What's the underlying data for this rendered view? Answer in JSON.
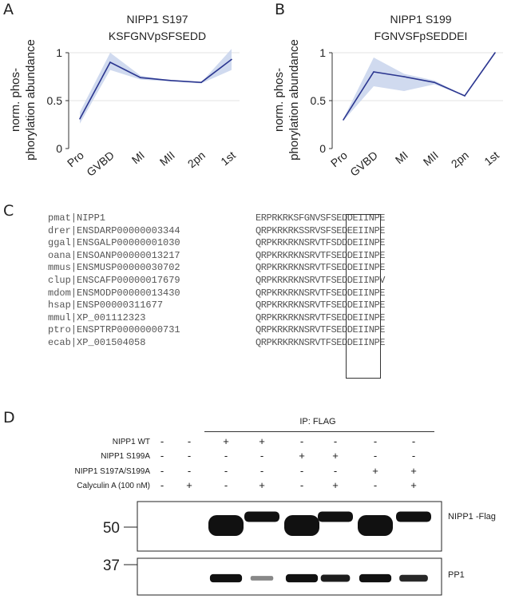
{
  "panels": {
    "a": "A",
    "b": "B",
    "c": "C",
    "d": "D"
  },
  "chart_data": [
    {
      "type": "line",
      "title": "NIPP1 S197",
      "subtitle": "KSFGNVpSFSEDD",
      "ylabel": "norm. phos-phorylation abundance",
      "ylabel_lines": [
        "norm. phos-",
        "phorylation abundance"
      ],
      "categories": [
        "Pro",
        "GVBD",
        "MI",
        "MII",
        "2pn",
        "1st"
      ],
      "values": [
        0.31,
        0.9,
        0.74,
        0.71,
        0.69,
        0.93
      ],
      "band_upper": [
        0.38,
        1.0,
        0.76,
        0.71,
        0.69,
        1.04
      ],
      "band_lower": [
        0.26,
        0.82,
        0.72,
        0.7,
        0.68,
        0.82
      ],
      "yticks": [
        "0",
        "0.5",
        "1"
      ],
      "ylim": [
        0,
        1
      ],
      "line_color": "#2b3690",
      "band_color": "#c8d3ec"
    },
    {
      "type": "line",
      "title": "NIPP1 S199",
      "subtitle": "FGNVSFpSEDDEI",
      "ylabel": "norm. phos-phorylation abundance",
      "ylabel_lines": [
        "norm. phos-",
        "phorylation abundance"
      ],
      "categories": [
        "Pro",
        "GVBD",
        "MI",
        "MII",
        "2pn",
        "1st"
      ],
      "values": [
        0.3,
        0.8,
        0.75,
        0.69,
        0.55,
        1.0
      ],
      "band_upper": [
        0.31,
        0.95,
        0.78,
        0.71,
        0.55,
        1.0
      ],
      "band_lower": [
        0.29,
        0.65,
        0.6,
        0.67,
        0.55,
        1.0
      ],
      "yticks": [
        "0",
        "0.5",
        "1"
      ],
      "ylim": [
        0,
        1
      ],
      "line_color": "#2b3690",
      "band_color": "#c8d3ec"
    }
  ],
  "alignment": {
    "rows": [
      {
        "id": "pmat|NIPP1",
        "seq": "ERPRKRKSFGNVSFSEDDEIINPE"
      },
      {
        "id": "drer|ENSDARP00000003344",
        "seq": "QRPKRKRKSSRVSFSEDEEIINPE"
      },
      {
        "id": "ggal|ENSGALP00000001030",
        "seq": "QRPKRKRKNSRVTFSDDDEIINPE"
      },
      {
        "id": "oana|ENSOANP00000013217",
        "seq": "QRPKRKRKNSRVTFSEDDEIINPE"
      },
      {
        "id": "mmus|ENSMUSP00000030702",
        "seq": "QRPKRKRKNSRVTFSEDDEIINPE"
      },
      {
        "id": "clup|ENSCAFP00000017679",
        "seq": "QRPKRKRKNSRVTFSEDDEIINPV"
      },
      {
        "id": "mdom|ENSMODP00000013430",
        "seq": "QRPKRKRKNSRVTFSEDDEIINPE"
      },
      {
        "id": "hsap|ENSP00000311677",
        "seq": "QRPKRKRKNSRVTFSEDDEIINPE"
      },
      {
        "id": "mmul|XP_001112323",
        "seq": "QRPKRKRKNSRVTFSEDDEIINPE"
      },
      {
        "id": "ptro|ENSPTRP00000000731",
        "seq": "QRPKRKRKNSRVTFSEDDEIINPE"
      },
      {
        "id": "ecab|XP_001504058",
        "seq": "QRPKRKRKNSRVTFSEDDEIINPE"
      }
    ]
  },
  "blot": {
    "ip_label": "IP: FLAG",
    "conditions": [
      {
        "label": "NIPP1  WT",
        "signs": [
          "-",
          "-",
          "+",
          "+",
          "-",
          "-",
          "-",
          "-"
        ]
      },
      {
        "label": "NIPP1  S199A",
        "signs": [
          "-",
          "-",
          "-",
          "-",
          "+",
          "+",
          "-",
          "-"
        ]
      },
      {
        "label": "NIPP1  S197A/S199A",
        "signs": [
          "-",
          "-",
          "-",
          "-",
          "-",
          "-",
          "+",
          "+"
        ]
      },
      {
        "label": "Calyculin A (100 nM)",
        "signs": [
          "-",
          "+",
          "-",
          "+",
          "-",
          "+",
          "-",
          "+"
        ]
      }
    ],
    "upper": {
      "marker": "50",
      "label": "NIPP1 -Flag",
      "band_intensity": [
        0,
        0,
        1.0,
        1.0,
        1.0,
        1.0,
        1.0,
        1.0
      ]
    },
    "lower": {
      "marker": "37",
      "label": "PP1",
      "band_intensity": [
        0,
        0,
        0.9,
        0.25,
        0.9,
        0.7,
        0.9,
        0.65
      ]
    }
  }
}
